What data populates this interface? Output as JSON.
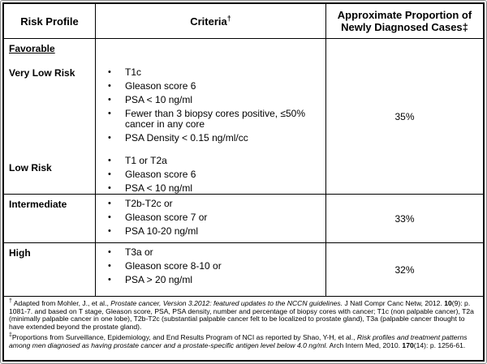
{
  "header": {
    "risk_profile": "Risk Profile",
    "criteria": "Criteria",
    "criteria_sup": "†",
    "proportion": "Approximate Proportion of Newly Diagnosed Cases‡"
  },
  "favorable": {
    "section_label": "Favorable",
    "very_low_risk": {
      "label": "Very Low Risk",
      "bullets": [
        "T1c",
        "Gleason score 6",
        "PSA < 10 ng/ml",
        "Fewer than 3 biopsy cores positive, ≤50% cancer in any core",
        "PSA Density < 0.15 ng/ml/cc"
      ]
    },
    "low_risk": {
      "label": "Low Risk",
      "bullets": [
        "T1 or T2a",
        "Gleason score 6",
        "PSA < 10 ng/ml"
      ]
    },
    "proportion": "35%"
  },
  "intermediate": {
    "label": "Intermediate",
    "bullets": [
      "T2b-T2c or",
      "Gleason score 7 or",
      "PSA 10-20 ng/ml"
    ],
    "proportion": "33%"
  },
  "high": {
    "label": "High",
    "bullets": [
      "T3a or",
      "Gleason score 8-10 or",
      "PSA > 20 ng/ml"
    ],
    "proportion": "32%"
  },
  "footnotes": {
    "first": {
      "sup": "†",
      "p1": " Adapted  from Mohler, J., et al., ",
      "italic": "Prostate cancer, Version 3.2012: featured updates to the NCCN guidelines.",
      "p2": " J Natl Compr Canc Netw, 2012. ",
      "vol": "10",
      "p3": "(9): p. 1081-7.  and based on T stage, Gleason score, PSA, PSA density, number and percentage of biopsy cores with cancer; T1c (non palpable cancer), T2a (minimally palpable cancer in one lobe), T2b-T2c (substantial palpable cancer felt to be localized to prostate gland), T3a (palpable cancer thought to have extended beyond the prostate gland)."
    },
    "second": {
      "sup": "‡",
      "p1": "Proportions from Surveillance, Epidemiology, and End Results Program of NCI as reported by Shao, Y-H, et al., ",
      "italic": "Risk profiles and treatment patterns among men diagnosed as having prostate cancer and a prostate-specific antigen level below 4.0 ng/ml.",
      "p2": " Arch Intern Med, 2010. ",
      "vol": "170",
      "p3": "(14): p. 1256-61."
    }
  }
}
